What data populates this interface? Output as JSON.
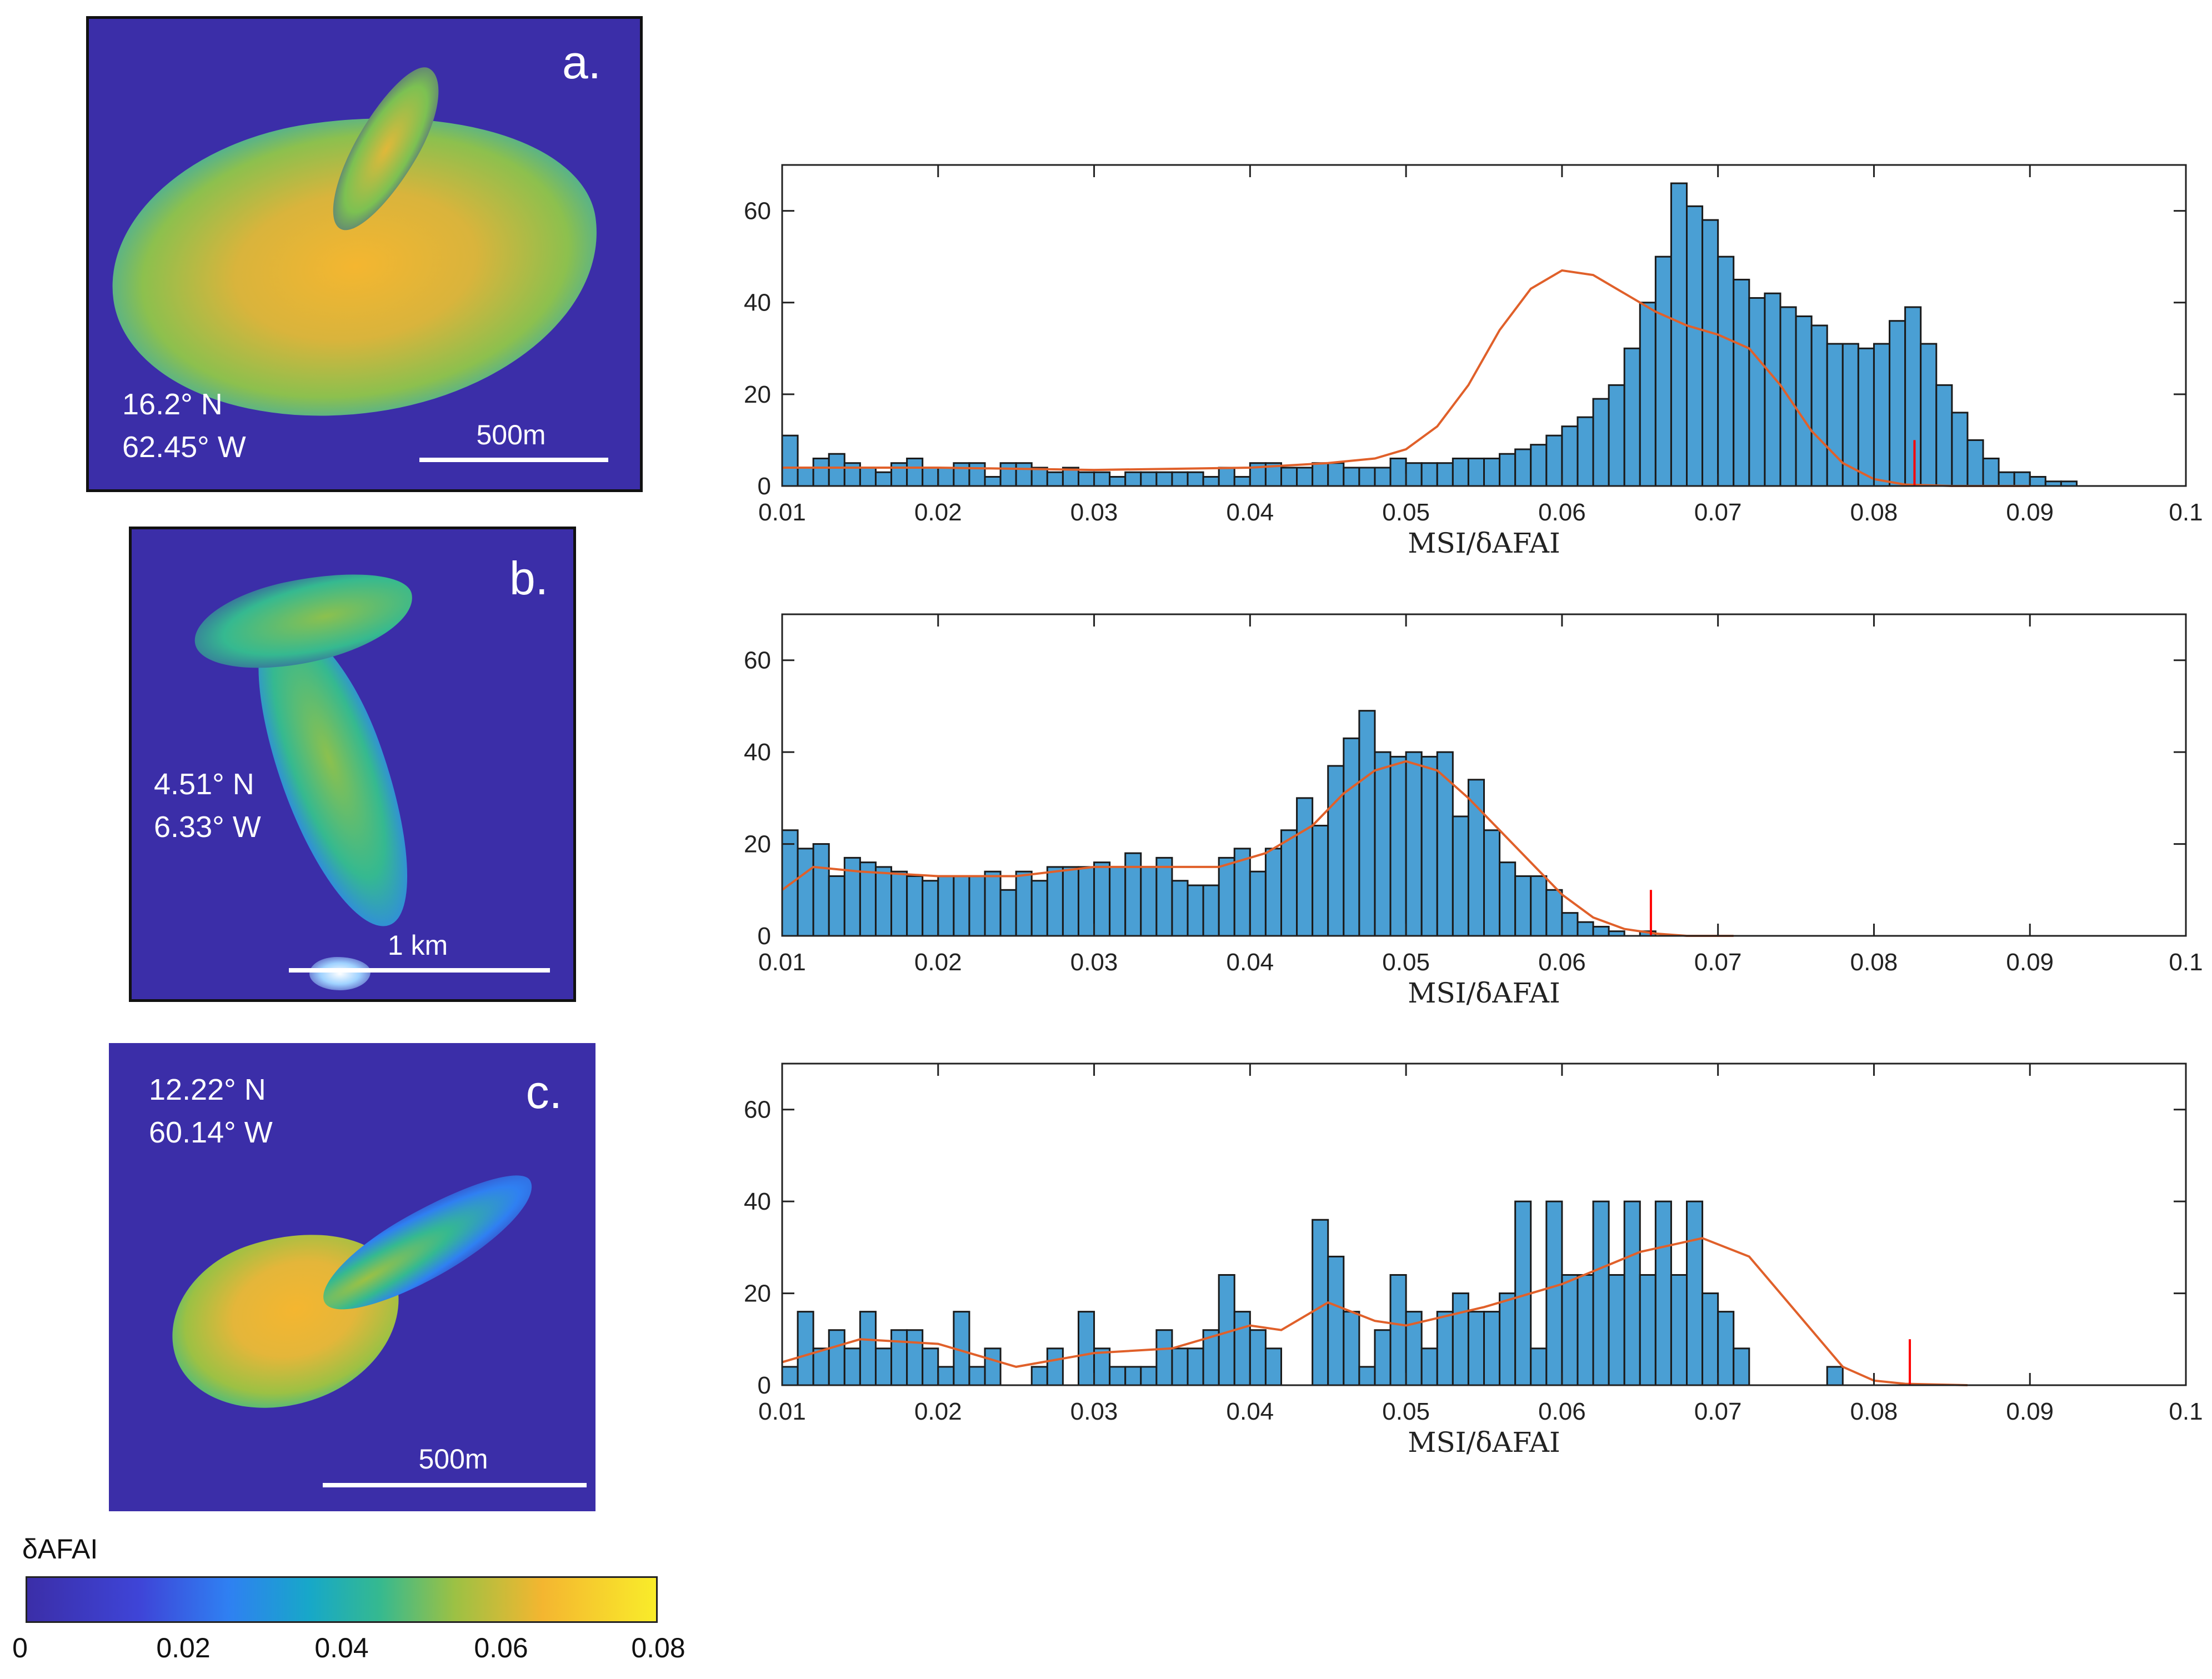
{
  "panels": [
    {
      "letter": "a.",
      "lat": "16.2° N",
      "lon": "62.45° W",
      "scale_label": "500m"
    },
    {
      "letter": "b.",
      "lat": "4.51° N",
      "lon": "6.33° W",
      "scale_label": "1 km"
    },
    {
      "letter": "c.",
      "lat": "12.22° N",
      "lon": "60.14° W",
      "scale_label": "500m"
    }
  ],
  "colorbar": {
    "title": "δAFAI",
    "ticks": [
      "0",
      "0.02",
      "0.04",
      "0.06",
      "0.08"
    ],
    "colors": [
      "#3b2ea8",
      "#2f80f2",
      "#17a8c8",
      "#9cc144",
      "#f9ec2a"
    ]
  },
  "colors": {
    "bar_fill": "#4a9fd4",
    "bar_edge": "#1a1a1a",
    "curve": "#e0602a",
    "marker": "#ff0000"
  },
  "chart_data": [
    {
      "type": "bar",
      "panel": "a",
      "xlabel": "MSI/δAFAI",
      "xlim": [
        0.01,
        0.1
      ],
      "ylim": [
        0,
        70
      ],
      "xticks": [
        "0.01",
        "0.02",
        "0.03",
        "0.04",
        "0.05",
        "0.06",
        "0.07",
        "0.08",
        "0.09",
        "0.1"
      ],
      "yticks": [
        "0",
        "20",
        "40",
        "60"
      ],
      "bin_width": 0.001,
      "bin_start": 0.01,
      "values": [
        11,
        4,
        6,
        7,
        5,
        4,
        3,
        5,
        6,
        4,
        4,
        5,
        5,
        2,
        5,
        5,
        4,
        3,
        4,
        3,
        3,
        2,
        3,
        3,
        3,
        3,
        3,
        2,
        4,
        2,
        5,
        5,
        4,
        4,
        5,
        5,
        4,
        4,
        4,
        6,
        5,
        5,
        5,
        6,
        6,
        6,
        7,
        8,
        9,
        11,
        13,
        15,
        19,
        22,
        30,
        40,
        50,
        66,
        61,
        58,
        50,
        45,
        41,
        42,
        39,
        37,
        35,
        31,
        31,
        30,
        31,
        36,
        39,
        31,
        22,
        16,
        10,
        6,
        3,
        3,
        2,
        1,
        1
      ],
      "fit_x": [
        0.01,
        0.02,
        0.03,
        0.04,
        0.045,
        0.048,
        0.05,
        0.052,
        0.054,
        0.056,
        0.058,
        0.06,
        0.062,
        0.064,
        0.066,
        0.068,
        0.07,
        0.072,
        0.074,
        0.076,
        0.078,
        0.08,
        0.082,
        0.085,
        0.09
      ],
      "fit_y": [
        4,
        4,
        3.5,
        4,
        5,
        6,
        8,
        13,
        22,
        34,
        43,
        47,
        46,
        42,
        38,
        35,
        33,
        30,
        22,
        12,
        5,
        1.5,
        0.3,
        0,
        0
      ],
      "marker_x": 0.0826,
      "marker_height": 10
    },
    {
      "type": "bar",
      "panel": "b",
      "xlabel": "MSI/δAFAI",
      "xlim": [
        0.01,
        0.1
      ],
      "ylim": [
        0,
        70
      ],
      "xticks": [
        "0.01",
        "0.02",
        "0.03",
        "0.04",
        "0.05",
        "0.06",
        "0.07",
        "0.08",
        "0.09",
        "0.1"
      ],
      "yticks": [
        "0",
        "20",
        "40",
        "60"
      ],
      "bin_width": 0.001,
      "bin_start": 0.01,
      "values": [
        23,
        19,
        20,
        13,
        17,
        16,
        15,
        14,
        13,
        12,
        13,
        13,
        13,
        14,
        10,
        14,
        12,
        15,
        15,
        15,
        16,
        15,
        18,
        15,
        17,
        12,
        11,
        11,
        17,
        19,
        14,
        19,
        23,
        30,
        24,
        37,
        43,
        49,
        40,
        39,
        40,
        39,
        40,
        26,
        34,
        23,
        16,
        13,
        13,
        10,
        5,
        3,
        2,
        1,
        0,
        1
      ],
      "fit_x": [
        0.01,
        0.012,
        0.015,
        0.02,
        0.025,
        0.03,
        0.035,
        0.038,
        0.041,
        0.044,
        0.046,
        0.048,
        0.05,
        0.052,
        0.054,
        0.056,
        0.058,
        0.06,
        0.062,
        0.064,
        0.066,
        0.068,
        0.071
      ],
      "fit_y": [
        10,
        15,
        14,
        13,
        13,
        15,
        15,
        15,
        18,
        24,
        31,
        36,
        38,
        36,
        30,
        23,
        16,
        9,
        4,
        1.5,
        0.5,
        0,
        0
      ],
      "marker_x": 0.0657,
      "marker_height": 10
    },
    {
      "type": "bar",
      "panel": "c",
      "xlabel": "MSI/δAFAI",
      "xlim": [
        0.01,
        0.1
      ],
      "ylim": [
        0,
        70
      ],
      "xticks": [
        "0.01",
        "0.02",
        "0.03",
        "0.04",
        "0.05",
        "0.06",
        "0.07",
        "0.08",
        "0.09",
        "0.1"
      ],
      "yticks": [
        "0",
        "20",
        "40",
        "60"
      ],
      "bin_width": 0.001,
      "bin_start": 0.01,
      "values": [
        4,
        16,
        8,
        12,
        8,
        16,
        8,
        12,
        12,
        8,
        4,
        16,
        4,
        8,
        0,
        0,
        4,
        8,
        0,
        16,
        8,
        4,
        4,
        4,
        12,
        8,
        8,
        12,
        24,
        16,
        12,
        8,
        0,
        0,
        36,
        28,
        16,
        4,
        12,
        24,
        16,
        8,
        16,
        20,
        16,
        16,
        20,
        40,
        8,
        40,
        24,
        24,
        40,
        24,
        40,
        24,
        40,
        24,
        40,
        20,
        16,
        8,
        0,
        0,
        0,
        0,
        0,
        4,
        0,
        0
      ],
      "fit_x": [
        0.01,
        0.015,
        0.02,
        0.025,
        0.03,
        0.035,
        0.04,
        0.042,
        0.045,
        0.048,
        0.05,
        0.055,
        0.06,
        0.065,
        0.069,
        0.072,
        0.075,
        0.078,
        0.08,
        0.082,
        0.086
      ],
      "fit_y": [
        5,
        10,
        9,
        4,
        7,
        8,
        13,
        12,
        18,
        14,
        13,
        17,
        22,
        29,
        32,
        28,
        16,
        4,
        1,
        0.3,
        0
      ],
      "marker_x": 0.0823,
      "marker_height": 10
    }
  ]
}
